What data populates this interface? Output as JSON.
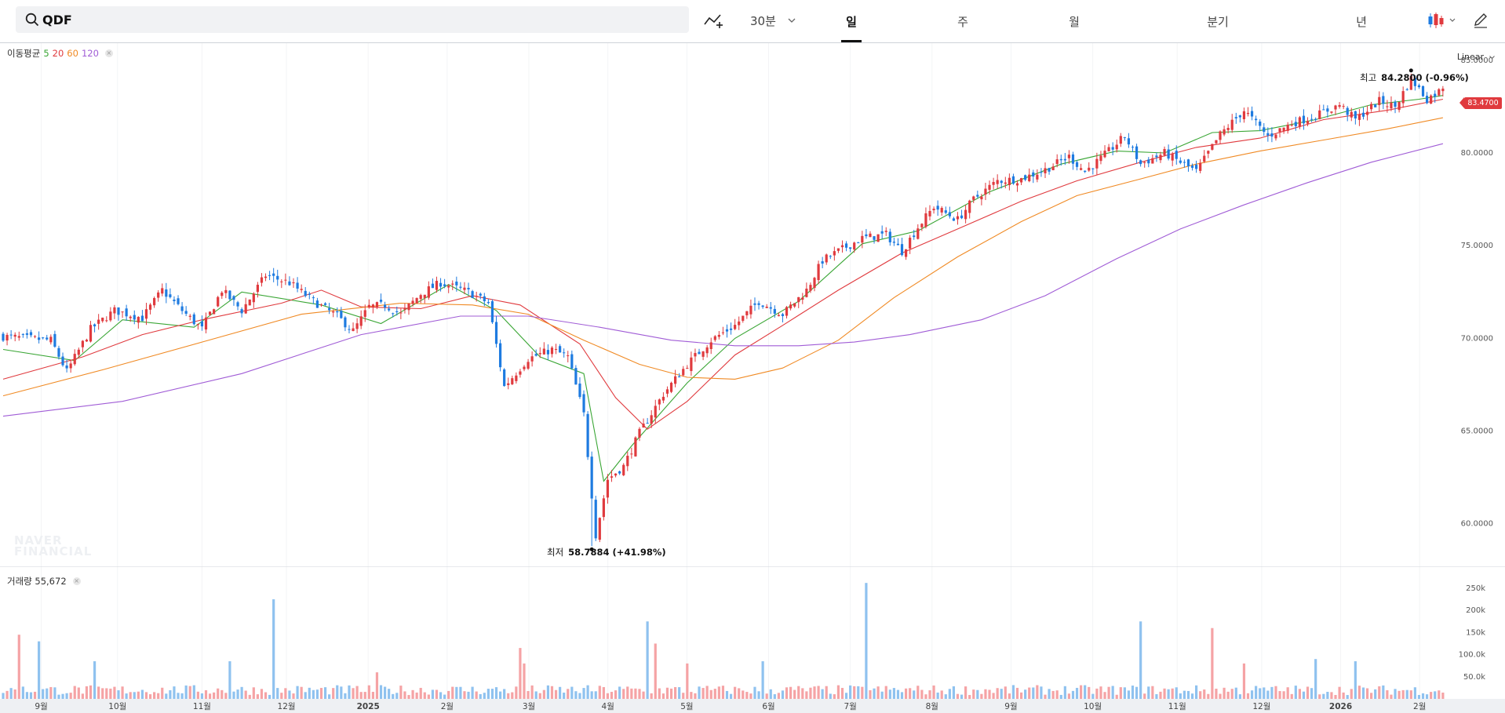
{
  "search": {
    "value": "QDF"
  },
  "toolbar": {
    "interval_label": "30분",
    "periods": [
      {
        "label": "일",
        "active": true
      },
      {
        "label": "주",
        "active": false
      },
      {
        "label": "월",
        "active": false
      },
      {
        "label": "분기",
        "active": false
      },
      {
        "label": "년",
        "active": false
      }
    ],
    "icons": [
      "add-indicator-icon",
      "chevron-down-icon",
      "candle-chart-icon",
      "pencil-icon"
    ]
  },
  "main_chart": {
    "legend_label": "이동평균",
    "ma_periods": [
      "5",
      "20",
      "60",
      "120"
    ],
    "ma_colors": [
      "#3aa635",
      "#e03a3e",
      "#f08a24",
      "#a05cd6"
    ],
    "scale_mode": "Linear",
    "current_price": "83.4700",
    "high": {
      "label": "최고",
      "value": "84.2800 (-0.96%)"
    },
    "low": {
      "label": "최저",
      "value": "58.7884 (+41.98%)"
    },
    "watermark": [
      "NAVER",
      "FINANCIAL"
    ]
  },
  "volume_panel": {
    "legend_label": "거래량 55,672"
  },
  "colors": {
    "up": "#e03a3e",
    "down": "#1e7be0",
    "up_volume": "#f5a3a5",
    "down_volume": "#8fc2ef"
  },
  "chart_data": [
    {
      "type": "candlestick",
      "y_ticks": [
        "85.0000",
        "80.0000",
        "75.0000",
        "70.0000",
        "65.0000",
        "60.0000"
      ],
      "ylim": [
        58,
        85.5
      ],
      "x_ticks": [
        "9월",
        "10월",
        "11월",
        "12월",
        "2025",
        "2월",
        "3월",
        "4월",
        "5월",
        "6월",
        "7월",
        "8월",
        "9월",
        "10월",
        "11월",
        "12월",
        "2026",
        "2월"
      ],
      "close_path": [
        [
          0,
          70.1
        ],
        [
          12,
          69.9
        ],
        [
          16,
          68.2
        ],
        [
          22,
          70.5
        ],
        [
          28,
          71.5
        ],
        [
          35,
          71.1
        ],
        [
          40,
          72.6
        ],
        [
          45,
          71.5
        ],
        [
          50,
          70.5
        ],
        [
          55,
          72.6
        ],
        [
          60,
          71.5
        ],
        [
          66,
          73.4
        ],
        [
          72,
          73.0
        ],
        [
          78,
          72.0
        ],
        [
          84,
          71.2
        ],
        [
          88,
          70.4
        ],
        [
          92,
          71.7
        ],
        [
          96,
          71.8
        ],
        [
          100,
          71.3
        ],
        [
          105,
          72.4
        ],
        [
          110,
          73.0
        ],
        [
          117,
          72.5
        ],
        [
          122,
          71.9
        ],
        [
          126,
          67.4
        ],
        [
          132,
          68.9
        ],
        [
          138,
          69.4
        ],
        [
          142,
          69.0
        ],
        [
          146,
          65.9
        ],
        [
          149,
          59.4
        ],
        [
          152,
          62.4
        ],
        [
          156,
          63.1
        ],
        [
          160,
          64.9
        ],
        [
          166,
          67.0
        ],
        [
          172,
          68.6
        ],
        [
          178,
          69.9
        ],
        [
          184,
          70.7
        ],
        [
          190,
          72.0
        ],
        [
          196,
          71.3
        ],
        [
          202,
          72.6
        ],
        [
          206,
          74.2
        ],
        [
          210,
          74.7
        ],
        [
          216,
          75.4
        ],
        [
          222,
          75.6
        ],
        [
          226,
          74.7
        ],
        [
          230,
          76.0
        ],
        [
          234,
          77.1
        ],
        [
          240,
          76.4
        ],
        [
          244,
          77.5
        ],
        [
          250,
          78.5
        ],
        [
          256,
          78.6
        ],
        [
          262,
          79.1
        ],
        [
          268,
          79.8
        ],
        [
          272,
          79.0
        ],
        [
          276,
          79.7
        ],
        [
          282,
          80.9
        ],
        [
          286,
          79.4
        ],
        [
          292,
          80.0
        ],
        [
          296,
          79.5
        ],
        [
          300,
          79.0
        ],
        [
          306,
          81.0
        ],
        [
          312,
          82.3
        ],
        [
          318,
          80.9
        ],
        [
          324,
          81.6
        ],
        [
          330,
          82.0
        ],
        [
          336,
          82.6
        ],
        [
          340,
          81.8
        ],
        [
          346,
          82.8
        ],
        [
          350,
          82.5
        ],
        [
          354,
          84.0
        ],
        [
          358,
          82.9
        ],
        [
          362,
          83.47
        ]
      ],
      "moving_averages": [
        {
          "name": "5",
          "points": [
            [
              0,
              69.4
            ],
            [
              18,
              68.8
            ],
            [
              30,
              71.0
            ],
            [
              48,
              70.6
            ],
            [
              60,
              72.5
            ],
            [
              80,
              71.8
            ],
            [
              95,
              70.8
            ],
            [
              112,
              72.9
            ],
            [
              124,
              71.5
            ],
            [
              135,
              69.0
            ],
            [
              146,
              68.1
            ],
            [
              151,
              62.3
            ],
            [
              158,
              64.2
            ],
            [
              172,
              67.6
            ],
            [
              184,
              70.0
            ],
            [
              200,
              72.0
            ],
            [
              216,
              75.1
            ],
            [
              230,
              75.8
            ],
            [
              248,
              77.9
            ],
            [
              266,
              79.4
            ],
            [
              280,
              80.1
            ],
            [
              292,
              80.0
            ],
            [
              304,
              81.1
            ],
            [
              316,
              81.2
            ],
            [
              330,
              81.8
            ],
            [
              344,
              82.6
            ],
            [
              356,
              82.9
            ],
            [
              362,
              83.1
            ]
          ]
        },
        {
          "name": "20",
          "points": [
            [
              0,
              67.8
            ],
            [
              20,
              69.0
            ],
            [
              35,
              70.2
            ],
            [
              50,
              71.0
            ],
            [
              70,
              71.9
            ],
            [
              80,
              72.6
            ],
            [
              90,
              71.7
            ],
            [
              105,
              71.6
            ],
            [
              118,
              72.3
            ],
            [
              130,
              71.8
            ],
            [
              145,
              69.7
            ],
            [
              154,
              66.8
            ],
            [
              162,
              65.1
            ],
            [
              172,
              66.6
            ],
            [
              184,
              69.1
            ],
            [
              196,
              70.7
            ],
            [
              210,
              72.6
            ],
            [
              226,
              74.6
            ],
            [
              240,
              75.9
            ],
            [
              256,
              77.4
            ],
            [
              270,
              78.5
            ],
            [
              286,
              79.5
            ],
            [
              300,
              80.3
            ],
            [
              316,
              80.8
            ],
            [
              332,
              81.8
            ],
            [
              348,
              82.3
            ],
            [
              362,
              82.9
            ]
          ]
        },
        {
          "name": "60",
          "points": [
            [
              0,
              66.9
            ],
            [
              25,
              68.3
            ],
            [
              50,
              69.8
            ],
            [
              75,
              71.3
            ],
            [
              100,
              71.9
            ],
            [
              118,
              71.8
            ],
            [
              132,
              71.3
            ],
            [
              146,
              69.9
            ],
            [
              160,
              68.6
            ],
            [
              172,
              67.9
            ],
            [
              184,
              67.8
            ],
            [
              196,
              68.4
            ],
            [
              210,
              69.9
            ],
            [
              224,
              72.2
            ],
            [
              240,
              74.4
            ],
            [
              256,
              76.3
            ],
            [
              270,
              77.7
            ],
            [
              286,
              78.6
            ],
            [
              300,
              79.4
            ],
            [
              316,
              80.1
            ],
            [
              332,
              80.7
            ],
            [
              348,
              81.3
            ],
            [
              362,
              81.9
            ]
          ]
        },
        {
          "name": "120",
          "points": [
            [
              0,
              65.8
            ],
            [
              30,
              66.6
            ],
            [
              60,
              68.1
            ],
            [
              90,
              70.2
            ],
            [
              115,
              71.2
            ],
            [
              132,
              71.2
            ],
            [
              150,
              70.6
            ],
            [
              168,
              69.9
            ],
            [
              184,
              69.6
            ],
            [
              200,
              69.6
            ],
            [
              214,
              69.8
            ],
            [
              228,
              70.2
            ],
            [
              246,
              71.0
            ],
            [
              262,
              72.3
            ],
            [
              280,
              74.3
            ],
            [
              296,
              75.9
            ],
            [
              312,
              77.2
            ],
            [
              328,
              78.4
            ],
            [
              344,
              79.5
            ],
            [
              362,
              80.5
            ]
          ]
        }
      ],
      "high": 84.28,
      "low": 58.7884,
      "last": 83.47
    },
    {
      "type": "bar",
      "y_ticks": [
        "250k",
        "200k",
        "150k",
        "100.0k",
        "50.0k"
      ],
      "ylim": [
        0,
        280000
      ],
      "spikes": [
        {
          "index": 4,
          "value": 145000
        },
        {
          "index": 9,
          "value": 130000
        },
        {
          "index": 23,
          "value": 85000
        },
        {
          "index": 57,
          "value": 85000
        },
        {
          "index": 68,
          "value": 225000
        },
        {
          "index": 94,
          "value": 60000
        },
        {
          "index": 130,
          "value": 115000
        },
        {
          "index": 131,
          "value": 80000
        },
        {
          "index": 162,
          "value": 175000
        },
        {
          "index": 164,
          "value": 125000
        },
        {
          "index": 172,
          "value": 80000
        },
        {
          "index": 191,
          "value": 85000
        },
        {
          "index": 217,
          "value": 262000
        },
        {
          "index": 286,
          "value": 175000
        },
        {
          "index": 304,
          "value": 160000
        },
        {
          "index": 312,
          "value": 80000
        },
        {
          "index": 330,
          "value": 90000
        },
        {
          "index": 340,
          "value": 85000
        }
      ],
      "base_volume": 25000
    }
  ]
}
